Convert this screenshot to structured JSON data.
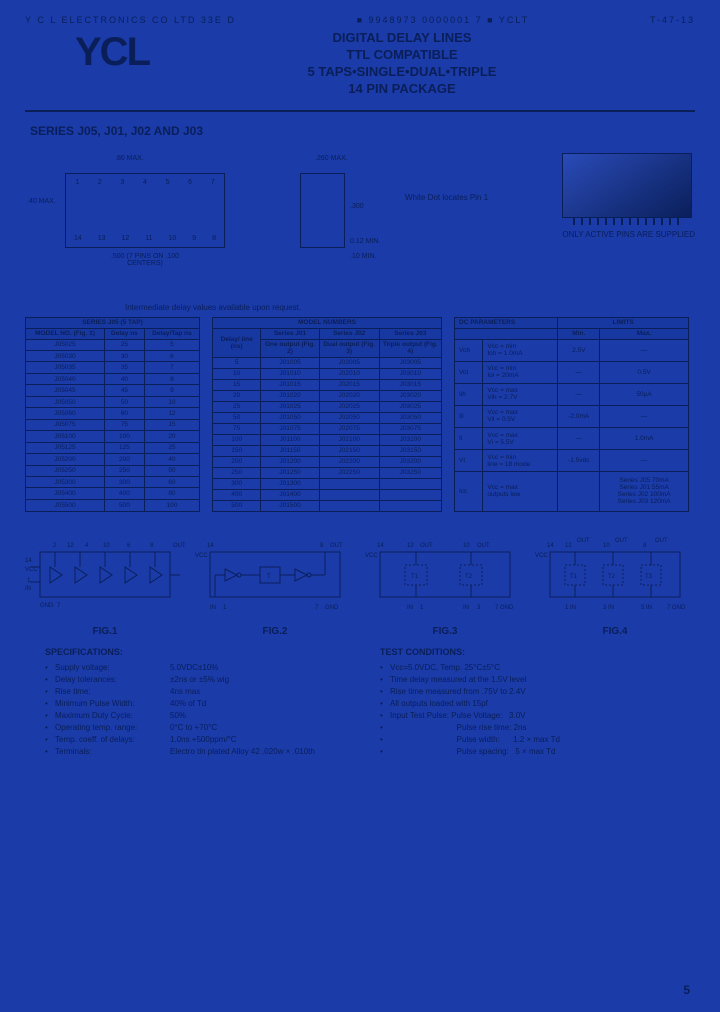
{
  "topbar": {
    "left": "Y C L  ELECTRONICS  CO  LTD     33E  D",
    "mid": "■  9948973  0000001  7  ■  YCLT",
    "right": "T-47-13"
  },
  "logo": "YCL",
  "title": {
    "l1": "DIGITAL DELAY LINES",
    "l2": "TTL COMPATIBLE",
    "l3": "5 TAPS•SINGLE•DUAL•TRIPLE",
    "l4": "14 PIN PACKAGE"
  },
  "series_title": "SERIES J05, J01, J02 AND J03",
  "pkg": {
    "dim_80": ".80 MAX.",
    "dim_40": ".40 MAX.",
    "dim_300": ".300",
    "dim_260": ".260 MAX.",
    "dim_012": "0.12 MIN.",
    "dim_10": ".10 MIN.",
    "pins_top": [
      "1",
      "2",
      "3",
      "4",
      "5",
      "6",
      "7"
    ],
    "pins_bot": [
      "14",
      "13",
      "12",
      "11",
      "10",
      "9",
      "8"
    ],
    "note_pins": ".500 (7 PINS ON .100 CENTERS)",
    "note_dot": "White Dot locates Pin 1",
    "note_active": "ONLY ACTIVE PINS ARE SUPPLIED"
  },
  "intermediate": "Intermediate delay values available upon request.",
  "table1": {
    "caption": "SERIES J05 (5 TAP)",
    "head": [
      "MODEL NO. (Fig. 1)",
      "Delay ns",
      "Delay/Tap ns"
    ],
    "rows": [
      [
        "J05025",
        "25",
        "5"
      ],
      [
        "J05030",
        "30",
        "6"
      ],
      [
        "J05035",
        "35",
        "7"
      ],
      [
        "J05040",
        "40",
        "8"
      ],
      [
        "J05045",
        "45",
        "9"
      ],
      [
        "J05050",
        "50",
        "10"
      ],
      [
        "J05060",
        "60",
        "12"
      ],
      [
        "J05075",
        "75",
        "15"
      ],
      [
        "J05100",
        "100",
        "20"
      ],
      [
        "J05125",
        "125",
        "25"
      ],
      [
        "J05200",
        "200",
        "40"
      ],
      [
        "J05250",
        "250",
        "50"
      ],
      [
        "J05300",
        "300",
        "60"
      ],
      [
        "J05400",
        "400",
        "80"
      ],
      [
        "J05500",
        "500",
        "100"
      ]
    ]
  },
  "table2": {
    "caption": "MODEL NUMBERS",
    "head_top": [
      "Delay/ line (ns)",
      "Series J01",
      "Series J02",
      "Series J03"
    ],
    "head_sub": [
      "",
      "One output (Fig. 2)",
      "Dual output (Fig. 3)",
      "Triple output (Fig. 4)"
    ],
    "rows": [
      [
        "5",
        "J01005",
        "J02005",
        "J03005"
      ],
      [
        "10",
        "J01010",
        "J02010",
        "J03010"
      ],
      [
        "15",
        "J01015",
        "J02015",
        "J03015"
      ],
      [
        "20",
        "J01020",
        "J02020",
        "J03020"
      ],
      [
        "25",
        "J01025",
        "J02025",
        "J03025"
      ],
      [
        "50",
        "J01050",
        "J02050",
        "J03050"
      ],
      [
        "75",
        "J01075",
        "J02075",
        "J03075"
      ],
      [
        "100",
        "J01100",
        "J02100",
        "J03100"
      ],
      [
        "150",
        "J01150",
        "J02150",
        "J03150"
      ],
      [
        "200",
        "J01200",
        "J02200",
        "J03200"
      ],
      [
        "250",
        "J01250",
        "J02250",
        "J03250"
      ],
      [
        "300",
        "J01300",
        "",
        ""
      ],
      [
        "400",
        "J01400",
        "",
        ""
      ],
      [
        "500",
        "J01500",
        "",
        ""
      ]
    ]
  },
  "table3": {
    "caption": "LIMITS",
    "head": [
      "DC PARAMETERS",
      "",
      "Min.",
      "Max."
    ],
    "rows": [
      [
        "Voh",
        "Vcc = min\nIoh = 1.0mA",
        "2.5V",
        "—"
      ],
      [
        "Vol",
        "Vcc = min\nIol = 20mA",
        "—",
        "0.5V"
      ],
      [
        "Iih",
        "Vcc = max\nVih = 2.7V",
        "—",
        "50µA"
      ],
      [
        "Iil",
        "Vcc = max\nVil = 0.5V",
        "-2.0mA",
        "—"
      ],
      [
        "Il",
        "Vcc = max\nVi = 5.5V",
        "—",
        "1.0mA"
      ],
      [
        "Vt",
        "Vcc = min\nline = 18 mode",
        "-1.5vdc",
        "—"
      ],
      [
        "Icc",
        "Vcc = max\noutputs low",
        "",
        "Series J05  70mA\nSeries J01  55mA\nSeries J02 100mA\nSeries J03 120mA"
      ]
    ]
  },
  "figs": {
    "f1": "FIG.1",
    "f2": "FIG.2",
    "f3": "FIG.3",
    "f4": "FIG.4",
    "vcc": "VCC",
    "in": "IN",
    "gnd": "GND",
    "out": "OUT",
    "pins_f1": [
      "12",
      "4",
      "10",
      "6",
      "8"
    ],
    "pin14": "14",
    "pin1": "1",
    "pin7": "7"
  },
  "specs": {
    "title": "SPECIFICATIONS:",
    "items": [
      {
        "k": "Supply voltage:",
        "v": "5.0VDC±10%"
      },
      {
        "k": "Delay tolerances:",
        "v": "±2ns or ±5% wig"
      },
      {
        "k": "Rise time:",
        "v": "4ns max"
      },
      {
        "k": "Minimum Pulse Width:",
        "v": "40% of Td"
      },
      {
        "k": "Maximum Duty Cycle:",
        "v": "50%"
      },
      {
        "k": "Operating temp. range:",
        "v": "0°C to +70°C"
      },
      {
        "k": "Temp. coeff. of delays:",
        "v": "1.0ns +500ppm/°C"
      },
      {
        "k": "Terminals:",
        "v": "Electro tin plated Alloy 42 .020w × .010th"
      }
    ]
  },
  "tests": {
    "title": "TEST CONDITIONS:",
    "items": [
      "Vcc=5.0VDC, Temp. 25°C±5°C",
      "Time delay measured at the 1.5V level",
      "Rise time measured from .75V to 2.4V",
      "All outputs loaded with 15pf",
      "Input Test Pulse: Pulse Voltage:   3.0V",
      "                              Pulse rise time: 2ns",
      "                              Pulse width:      1.2 × max Td",
      "                              Pulse spacing:   5 × max Td"
    ]
  },
  "page_num": "5",
  "colors": {
    "bg": "#1a3ba8",
    "fg": "#0a1f5a"
  }
}
